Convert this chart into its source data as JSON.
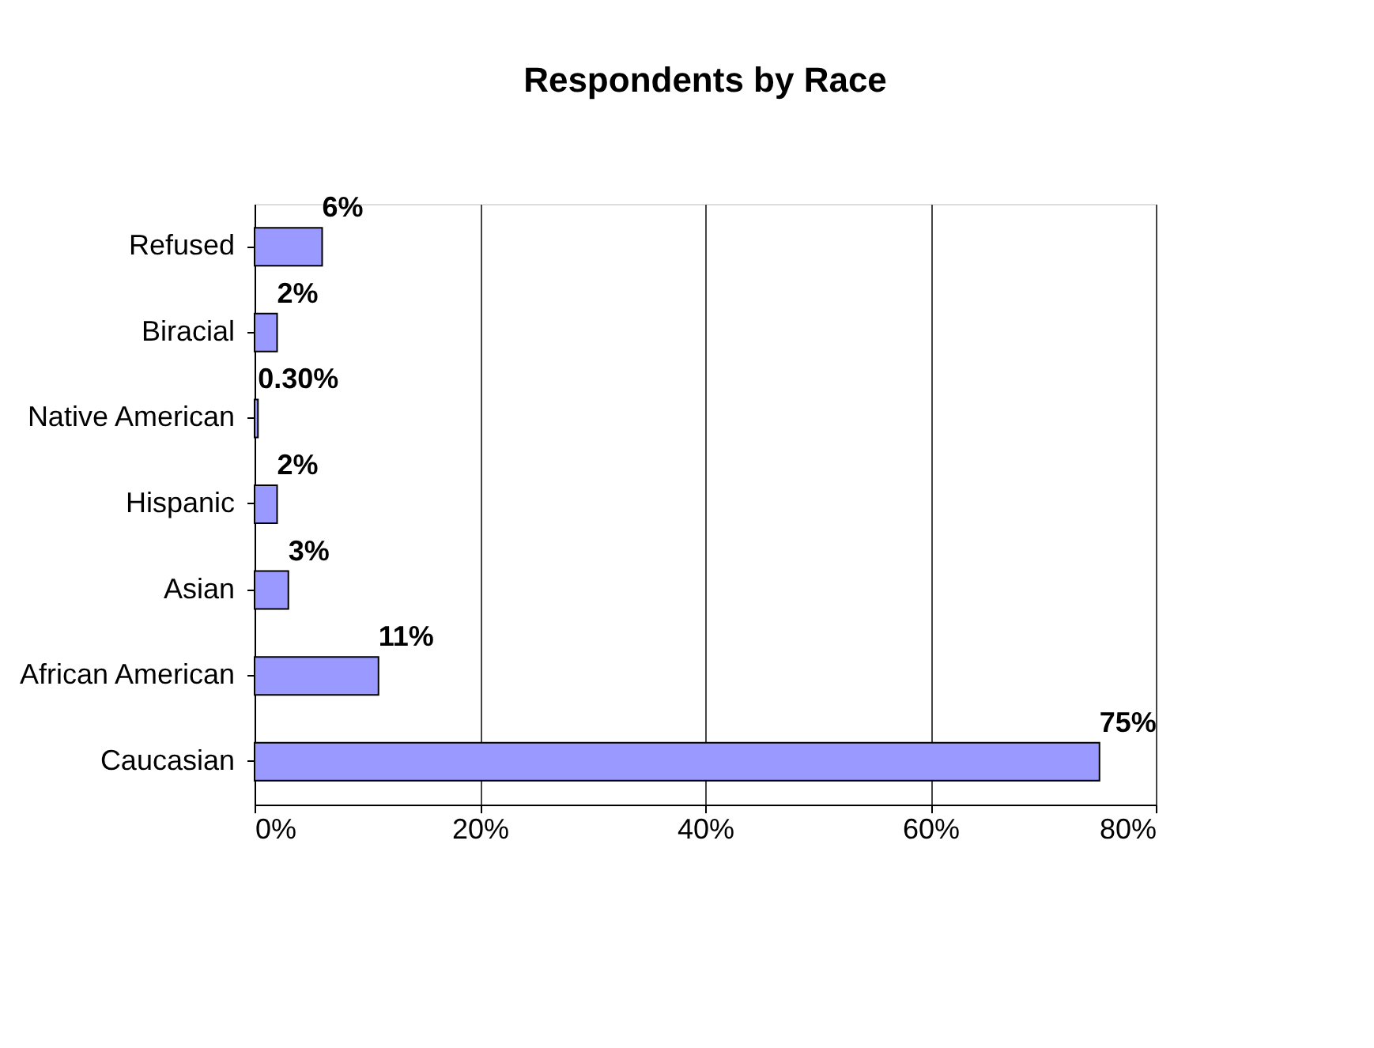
{
  "chart_data": {
    "type": "bar",
    "title": "Respondents by Race",
    "orientation": "horizontal",
    "categories": [
      "Refused",
      "Biracial",
      "Native American",
      "Hispanic",
      "Asian",
      "African American",
      "Caucasian"
    ],
    "values": [
      6,
      2,
      0.3,
      2,
      3,
      11,
      75
    ],
    "value_labels": [
      "6%",
      "2%",
      "0.30%",
      "2%",
      "3%",
      "11%",
      "75%"
    ],
    "color": "#9999ff",
    "xlim": [
      0,
      80
    ],
    "xticks": [
      {
        "value": 0,
        "label": "0%"
      },
      {
        "value": 20,
        "label": "20%"
      },
      {
        "value": 40,
        "label": "40%"
      },
      {
        "value": 60,
        "label": "60%"
      },
      {
        "value": 80,
        "label": "80%"
      }
    ],
    "grid": "x"
  }
}
